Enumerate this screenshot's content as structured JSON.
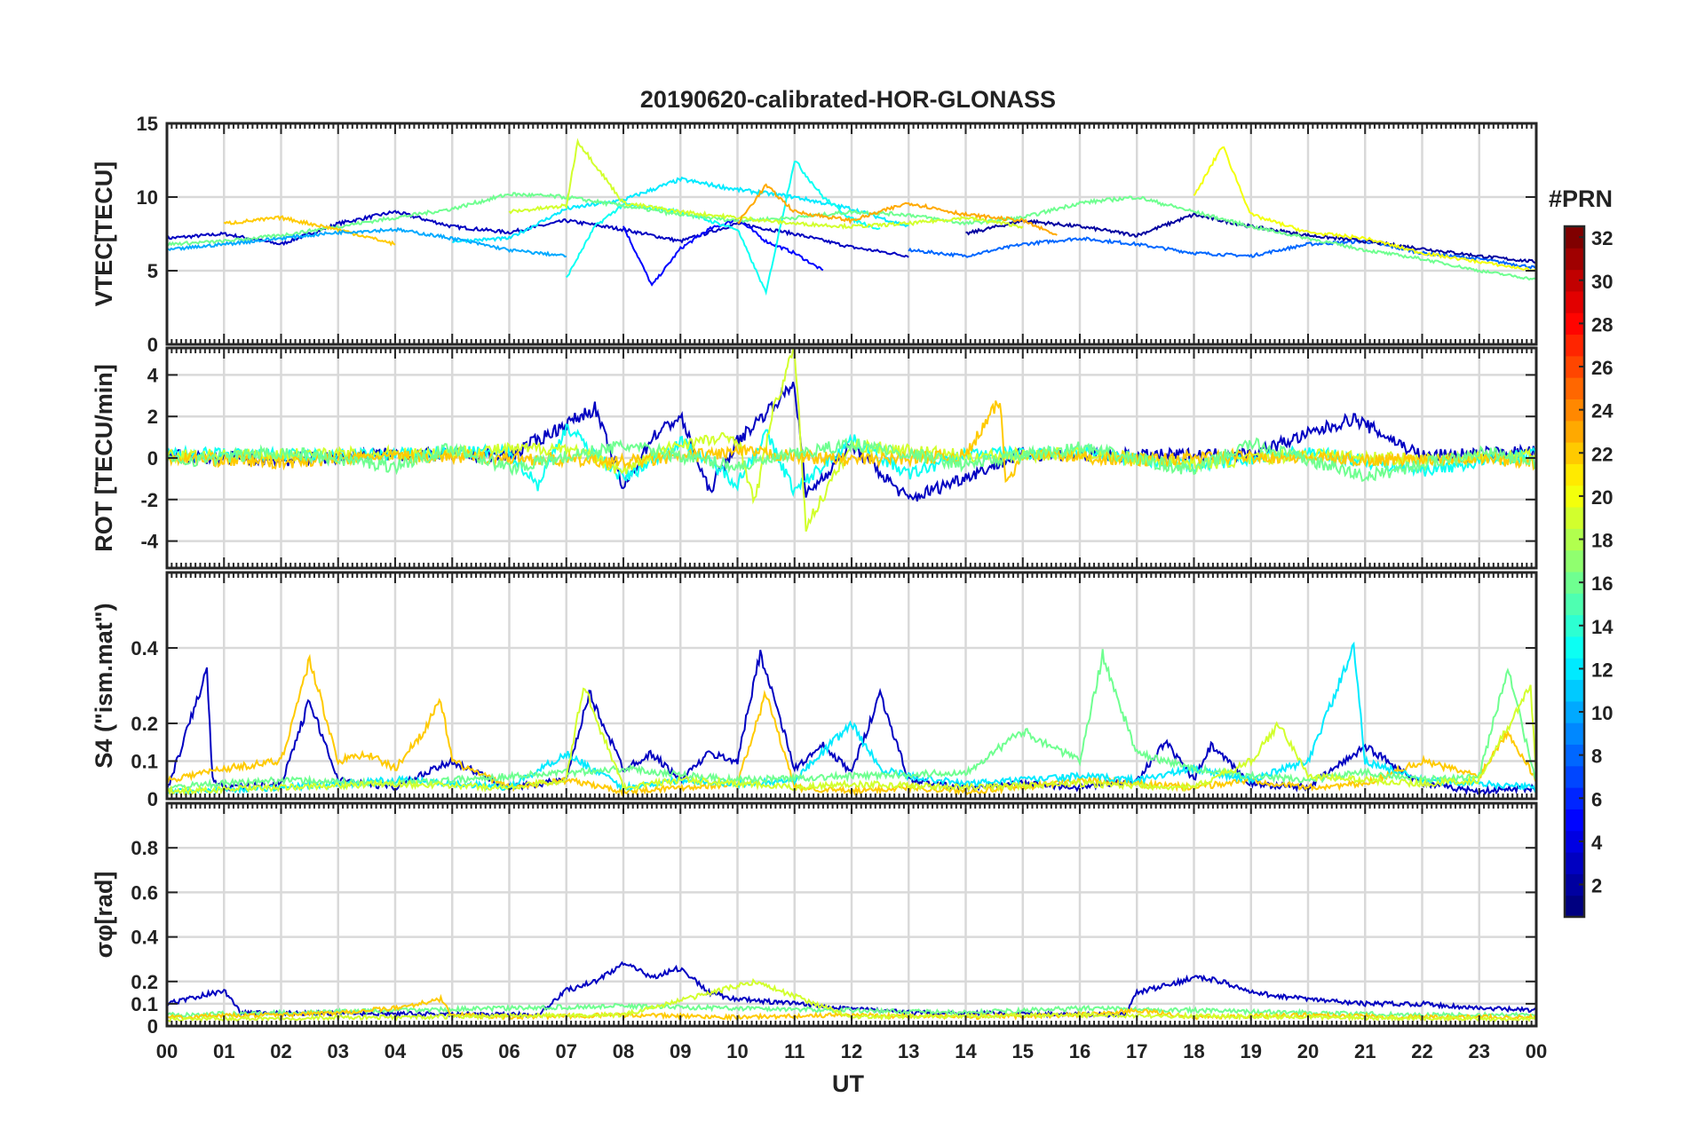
{
  "figure": {
    "title": "20190620-calibrated-HOR-GLONASS",
    "xlabel": "UT",
    "x_tick_labels": [
      "00",
      "01",
      "02",
      "03",
      "04",
      "05",
      "06",
      "07",
      "08",
      "09",
      "10",
      "11",
      "12",
      "13",
      "14",
      "15",
      "16",
      "17",
      "18",
      "19",
      "20",
      "21",
      "22",
      "23",
      "00"
    ],
    "colorbar": {
      "title": "#PRN",
      "tick_labels": [
        "2",
        "4",
        "6",
        "8",
        "10",
        "12",
        "14",
        "16",
        "18",
        "20",
        "22",
        "24",
        "26",
        "28",
        "30",
        "32"
      ],
      "range": [
        1,
        32
      ]
    }
  },
  "chart_data": [
    {
      "type": "line",
      "panel": "vtec",
      "ylabel": "VTEC[TECU]",
      "xlim": [
        0,
        24
      ],
      "ylim": [
        0,
        15
      ],
      "y_ticks": [
        0,
        5,
        10,
        15
      ],
      "grid": true,
      "series": [
        {
          "prn": 3,
          "x": [
            0,
            1,
            2,
            3,
            4,
            5,
            6,
            7,
            8,
            9,
            10,
            11,
            12,
            13
          ],
          "y": [
            7.2,
            7.5,
            6.8,
            8.2,
            9.0,
            8.0,
            7.6,
            8.4,
            7.8,
            7.0,
            8.2,
            7.5,
            6.6,
            6.0
          ]
        },
        {
          "prn": 5,
          "x": [
            8,
            8.5,
            9,
            9.5,
            10,
            10.5,
            11,
            11.5
          ],
          "y": [
            8.0,
            4.0,
            6.5,
            7.8,
            8.5,
            7.0,
            6.2,
            5.0
          ]
        },
        {
          "prn": 8,
          "x": [
            13,
            14,
            15,
            16,
            17,
            18,
            19,
            20,
            21,
            22,
            23,
            24
          ],
          "y": [
            6.4,
            6.0,
            6.8,
            7.2,
            6.8,
            6.2,
            6.0,
            6.8,
            7.0,
            6.2,
            5.8,
            5.2
          ]
        },
        {
          "prn": 2,
          "x": [
            14,
            15,
            16,
            17,
            18,
            19,
            20,
            21,
            22,
            23,
            24
          ],
          "y": [
            7.5,
            8.4,
            8.0,
            7.4,
            8.8,
            8.0,
            7.4,
            7.0,
            6.5,
            6.0,
            5.6
          ]
        },
        {
          "prn": 12,
          "x": [
            5,
            6,
            7,
            8,
            9,
            10,
            11,
            12,
            13
          ],
          "y": [
            7.0,
            7.2,
            9.2,
            9.8,
            11.2,
            10.5,
            10.0,
            9.2,
            8.0
          ]
        },
        {
          "prn": 13,
          "x": [
            7,
            7.5,
            8,
            9,
            10,
            10.5,
            11,
            11.5,
            12,
            12.5
          ],
          "y": [
            4.5,
            8.0,
            9.5,
            9.0,
            7.8,
            3.5,
            12.5,
            10.0,
            8.5,
            7.8
          ]
        },
        {
          "prn": 16,
          "x": [
            0,
            1,
            2,
            3,
            4,
            5,
            6,
            7,
            8,
            9,
            10,
            11,
            12,
            13,
            14,
            15,
            16,
            17,
            18,
            19,
            20,
            21,
            22,
            23,
            24
          ],
          "y": [
            6.8,
            7.0,
            7.4,
            8.0,
            8.6,
            9.2,
            10.2,
            10.0,
            9.4,
            8.8,
            8.4,
            8.6,
            9.0,
            8.8,
            8.2,
            8.6,
            9.6,
            10.0,
            9.0,
            8.0,
            7.2,
            6.4,
            5.8,
            5.0,
            4.4
          ]
        },
        {
          "prn": 19,
          "x": [
            6,
            7,
            7.2,
            8,
            9,
            10,
            11,
            12,
            13,
            14,
            15
          ],
          "y": [
            9.0,
            9.4,
            13.8,
            9.6,
            9.0,
            8.6,
            8.2,
            8.0,
            8.2,
            8.6,
            8.0
          ]
        },
        {
          "prn": 20,
          "x": [
            18,
            18.5,
            19,
            20,
            21,
            22,
            23,
            24
          ],
          "y": [
            10.0,
            13.5,
            8.8,
            7.6,
            7.2,
            6.2,
            5.6,
            5.0
          ]
        },
        {
          "prn": 22,
          "x": [
            1,
            2,
            3,
            4
          ],
          "y": [
            8.2,
            8.6,
            7.8,
            6.8
          ]
        },
        {
          "prn": 23,
          "x": [
            10,
            10.5,
            11,
            12,
            13,
            14,
            15,
            15.6
          ],
          "y": [
            8.2,
            10.8,
            9.0,
            8.4,
            9.6,
            8.8,
            8.4,
            7.4
          ]
        },
        {
          "prn": 10,
          "x": [
            0,
            1,
            2,
            3,
            4,
            5,
            6,
            7
          ],
          "y": [
            6.4,
            6.8,
            7.2,
            7.6,
            7.8,
            7.2,
            6.4,
            6.0
          ]
        }
      ]
    },
    {
      "type": "line",
      "panel": "rot",
      "ylabel": "ROT [TECU/min]",
      "xlim": [
        0,
        24
      ],
      "ylim": [
        -5.3,
        5.3
      ],
      "y_ticks": [
        -4,
        -2,
        0,
        2,
        4
      ],
      "grid": true,
      "series": [
        {
          "prn": 3,
          "x": [
            0,
            2,
            4,
            6,
            7.5,
            8,
            8.5,
            9,
            9.5,
            10,
            11,
            11.2,
            12,
            13,
            15,
            17,
            19,
            20.8,
            22,
            24
          ],
          "y": [
            0.1,
            -0.1,
            0.2,
            0.1,
            2.4,
            -1.5,
            1.0,
            2.0,
            -1.6,
            0.8,
            3.6,
            -1.8,
            0.6,
            -2.0,
            0.2,
            0.1,
            0.2,
            1.9,
            0.1,
            0.3
          ]
        },
        {
          "prn": 13,
          "x": [
            0,
            3,
            6,
            6.5,
            7,
            8,
            9,
            10,
            10.5,
            11,
            12,
            13,
            14,
            16,
            18,
            20,
            22,
            24
          ],
          "y": [
            0.2,
            0.1,
            0.3,
            -1.3,
            1.5,
            -1.0,
            0.8,
            -1.2,
            1.2,
            -1.6,
            0.9,
            -0.8,
            0.2,
            0.3,
            -0.4,
            0.3,
            -0.6,
            0.2
          ]
        },
        {
          "prn": 19,
          "x": [
            0,
            4,
            7,
            8,
            9,
            10,
            10.3,
            10.6,
            11,
            11.2,
            12,
            14,
            16,
            18,
            20,
            22,
            24
          ],
          "y": [
            0.1,
            0.2,
            0.5,
            -0.6,
            0.7,
            1.0,
            -2.2,
            2.0,
            5.3,
            -3.3,
            0.6,
            0.1,
            0.2,
            -0.3,
            0.2,
            -0.1,
            0.2
          ]
        },
        {
          "prn": 22,
          "x": [
            0,
            2,
            4,
            6,
            8,
            10,
            12,
            14,
            14.6,
            14.7,
            15,
            17,
            19,
            21,
            23,
            24
          ],
          "y": [
            0.0,
            -0.2,
            0.1,
            0.0,
            -0.2,
            0.3,
            -0.1,
            0.1,
            2.8,
            -1.2,
            0.2,
            -0.1,
            0.1,
            -0.1,
            0.0,
            -0.2
          ]
        },
        {
          "prn": 16,
          "x": [
            0,
            2,
            4,
            5,
            6,
            8,
            10,
            12,
            14,
            16,
            18,
            19,
            21,
            23,
            24
          ],
          "y": [
            -0.2,
            0.3,
            -0.4,
            0.5,
            -0.5,
            0.6,
            -0.4,
            0.7,
            -0.3,
            0.5,
            -0.6,
            0.7,
            -0.9,
            0.3,
            -0.2
          ]
        }
      ]
    },
    {
      "type": "line",
      "panel": "s4",
      "ylabel": "S4 (\"ism.mat\")",
      "xlim": [
        0,
        24
      ],
      "ylim": [
        0,
        0.6
      ],
      "y_ticks": [
        0,
        0.1,
        0.2,
        0.4
      ],
      "y_tick_labels": [
        "0",
        "0.1",
        "0.2",
        "0.4"
      ],
      "grid": true,
      "series": [
        {
          "prn": 3,
          "x": [
            0,
            0.7,
            0.8,
            1,
            2,
            2.5,
            3,
            4,
            5,
            6,
            7,
            7.4,
            8,
            8.5,
            9,
            9.5,
            10,
            10.4,
            11,
            11.5,
            12,
            12.5,
            13,
            14,
            15,
            16,
            17,
            17.5,
            18,
            18.3,
            19,
            20,
            21,
            22,
            23,
            24
          ],
          "y": [
            0.02,
            0.34,
            0.05,
            0.03,
            0.04,
            0.26,
            0.05,
            0.03,
            0.1,
            0.03,
            0.05,
            0.28,
            0.08,
            0.12,
            0.05,
            0.12,
            0.1,
            0.39,
            0.08,
            0.14,
            0.07,
            0.28,
            0.05,
            0.03,
            0.04,
            0.03,
            0.05,
            0.15,
            0.05,
            0.14,
            0.04,
            0.03,
            0.14,
            0.04,
            0.02,
            0.03
          ]
        },
        {
          "prn": 22,
          "x": [
            0,
            1,
            2,
            2.5,
            3,
            3.5,
            4,
            4.5,
            4.8,
            5,
            6,
            7,
            8,
            9,
            10,
            10.5,
            11,
            12,
            13,
            14,
            15,
            16,
            17,
            18,
            19,
            20,
            21,
            22,
            23,
            23.5,
            24
          ],
          "y": [
            0.05,
            0.08,
            0.1,
            0.37,
            0.1,
            0.12,
            0.08,
            0.18,
            0.26,
            0.1,
            0.03,
            0.05,
            0.02,
            0.03,
            0.04,
            0.28,
            0.03,
            0.02,
            0.03,
            0.02,
            0.03,
            0.05,
            0.04,
            0.03,
            0.05,
            0.03,
            0.04,
            0.1,
            0.06,
            0.18,
            0.05
          ]
        },
        {
          "prn": 12,
          "x": [
            0,
            2,
            4,
            6,
            7,
            8,
            9,
            10,
            11,
            12,
            12.5,
            13,
            14,
            15,
            16,
            17,
            18,
            19,
            20,
            20.8,
            21,
            22,
            23,
            24
          ],
          "y": [
            0.02,
            0.03,
            0.05,
            0.03,
            0.12,
            0.03,
            0.05,
            0.04,
            0.05,
            0.2,
            0.08,
            0.06,
            0.04,
            0.05,
            0.06,
            0.05,
            0.08,
            0.05,
            0.1,
            0.4,
            0.1,
            0.05,
            0.04,
            0.03
          ]
        },
        {
          "prn": 16,
          "x": [
            0,
            2,
            4,
            6,
            8,
            10,
            12,
            14,
            15,
            16,
            16.4,
            17,
            18,
            19,
            20,
            21,
            22,
            23,
            23.5,
            24
          ],
          "y": [
            0.03,
            0.05,
            0.04,
            0.06,
            0.08,
            0.05,
            0.06,
            0.07,
            0.18,
            0.1,
            0.38,
            0.12,
            0.08,
            0.06,
            0.05,
            0.07,
            0.05,
            0.06,
            0.35,
            0.04
          ]
        },
        {
          "prn": 19,
          "x": [
            0,
            2,
            4,
            6,
            7,
            7.3,
            8,
            9,
            10,
            11,
            12,
            14,
            16,
            18,
            19,
            19.5,
            20,
            21,
            22,
            23,
            23.9,
            24
          ],
          "y": [
            0.02,
            0.03,
            0.04,
            0.03,
            0.05,
            0.3,
            0.03,
            0.05,
            0.04,
            0.03,
            0.04,
            0.03,
            0.04,
            0.03,
            0.1,
            0.2,
            0.06,
            0.05,
            0.04,
            0.05,
            0.3,
            0.05
          ]
        }
      ]
    },
    {
      "type": "line",
      "panel": "sigma_phi",
      "ylabel": "σφ[rad]",
      "xlim": [
        0,
        24
      ],
      "ylim": [
        0,
        1.0
      ],
      "y_ticks": [
        0,
        0.1,
        0.2,
        0.4,
        0.6,
        0.8
      ],
      "y_tick_labels": [
        "0",
        "0.1",
        "0.2",
        "0.4",
        "0.6",
        "0.8"
      ],
      "grid": true,
      "series": [
        {
          "prn": 3,
          "x": [
            0,
            1,
            1.3,
            6.5,
            7,
            7.5,
            8,
            8.5,
            9,
            9.5,
            10,
            11,
            12,
            13,
            16.8,
            17,
            17.5,
            18,
            18.5,
            19,
            20,
            21,
            22,
            23,
            24
          ],
          "y": [
            0.1,
            0.16,
            0.06,
            0.05,
            0.16,
            0.2,
            0.28,
            0.22,
            0.26,
            0.15,
            0.12,
            0.1,
            0.08,
            0.06,
            0.05,
            0.15,
            0.18,
            0.22,
            0.2,
            0.15,
            0.12,
            0.1,
            0.1,
            0.08,
            0.07
          ]
        },
        {
          "prn": 16,
          "x": [
            0,
            2,
            4,
            6,
            8,
            10,
            12,
            14,
            16,
            18,
            20,
            22,
            24
          ],
          "y": [
            0.05,
            0.06,
            0.07,
            0.08,
            0.09,
            0.08,
            0.07,
            0.06,
            0.08,
            0.07,
            0.06,
            0.05,
            0.05
          ]
        },
        {
          "prn": 22,
          "x": [
            0,
            2,
            3,
            4,
            4.8,
            5,
            6,
            8,
            10,
            12,
            14,
            16,
            17,
            18,
            20,
            22,
            24
          ],
          "y": [
            0.04,
            0.05,
            0.06,
            0.08,
            0.12,
            0.05,
            0.04,
            0.05,
            0.04,
            0.05,
            0.04,
            0.05,
            0.07,
            0.04,
            0.05,
            0.04,
            0.04
          ]
        },
        {
          "prn": 19,
          "x": [
            0,
            4,
            8,
            10.3,
            12,
            16,
            20,
            24
          ],
          "y": [
            0.03,
            0.04,
            0.05,
            0.2,
            0.04,
            0.05,
            0.04,
            0.03
          ]
        }
      ]
    }
  ]
}
